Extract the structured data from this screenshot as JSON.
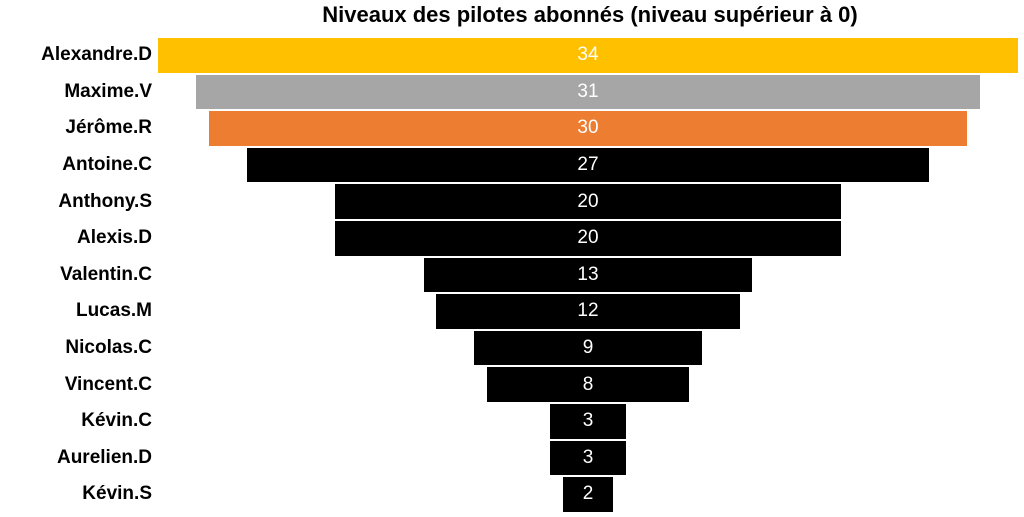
{
  "chart_data": {
    "type": "bar",
    "orientation": "horizontal-funnel",
    "title": "Niveaux des pilotes abonnés (niveau supérieur à 0)",
    "categories": [
      "Alexandre.D",
      "Maxime.V",
      "Jérôme.R",
      "Antoine.C",
      "Anthony.S",
      "Alexis.D",
      "Valentin.C",
      "Lucas.M",
      "Nicolas.C",
      "Vincent.C",
      "Kévin.C",
      "Aurelien.D",
      "Kévin.S"
    ],
    "values": [
      34,
      31,
      30,
      27,
      20,
      20,
      13,
      12,
      9,
      8,
      3,
      3,
      2
    ],
    "colors": [
      "#FFC000",
      "#A6A6A6",
      "#ED7D31",
      "#000000",
      "#000000",
      "#000000",
      "#000000",
      "#000000",
      "#000000",
      "#000000",
      "#000000",
      "#000000",
      "#000000"
    ],
    "xlim": [
      0,
      34
    ],
    "grid": false,
    "legend": "none"
  }
}
